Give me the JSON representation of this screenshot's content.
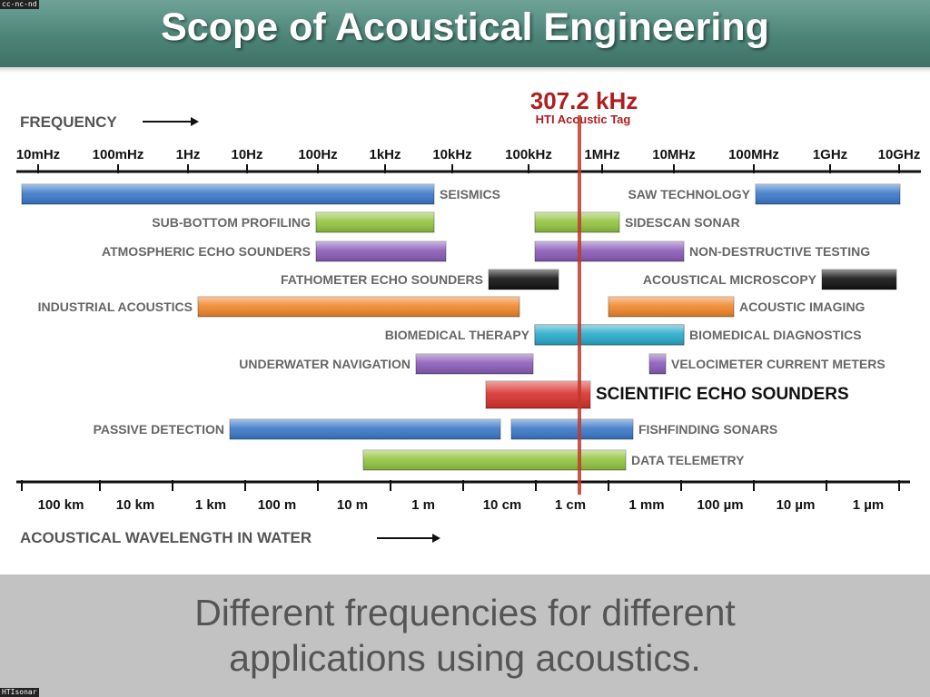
{
  "title": "Scope of Acoustical Engineering",
  "license_tag": "cc-nc-nd",
  "source_tag": "HTIsonar",
  "frequency_label": "FREQUENCY",
  "wavelength_label": "ACOUSTICAL WAVELENGTH IN WATER",
  "frequency_ticks": [
    "10mHz",
    "100mHz",
    "1Hz",
    "10Hz",
    "100Hz",
    "1kHz",
    "10kHz",
    "100kHz",
    "1MHz",
    "10MHz",
    "100MHz",
    "1GHz",
    "10GHz"
  ],
  "wavelength_ticks": [
    "100 km",
    "10 km",
    "1 km",
    "100 m",
    "10 m",
    "1 m",
    "10 cm",
    "1 cm",
    "1 mm",
    "100 µm",
    "10 µm",
    "1 µm"
  ],
  "marker": {
    "value": "307.2 kHz",
    "label": "HTI Acoustic Tag",
    "color": "#c0392b"
  },
  "colors": {
    "blue": "#3a78c9",
    "green": "#93c440",
    "purple": "#8a5bb8",
    "black": "#111111",
    "orange": "#f0862a",
    "teal": "#27aacb",
    "red": "#d8312c"
  },
  "applications": [
    {
      "label": "SEISMICS",
      "color": "blue",
      "from": "10mHz",
      "to": "10kHz",
      "label_side": "right"
    },
    {
      "label": "SUB-BOTTOM PROFILING",
      "color": "green",
      "from": "100Hz",
      "to": "10kHz",
      "label_side": "left"
    },
    {
      "label": "ATMOSPHERIC ECHO SOUNDERS",
      "color": "purple",
      "from": "100Hz",
      "to": "10kHz",
      "label_side": "left"
    },
    {
      "label": "FATHOMETER ECHO SOUNDERS",
      "color": "black",
      "from": "~30kHz",
      "to": "~300kHz",
      "label_side": "left"
    },
    {
      "label": "INDUSTRIAL ACOUSTICS",
      "color": "orange",
      "from": "~3Hz",
      "to": "~50kHz",
      "label_side": "left"
    },
    {
      "label": "BIOMEDICAL THERAPY",
      "color": "teal",
      "from": "100kHz",
      "to": "1MHz",
      "label_side": "left"
    },
    {
      "label": "UNDERWATER NAVIGATION",
      "color": "purple",
      "from": "~10kHz",
      "to": "100kHz",
      "label_side": "left"
    },
    {
      "label": "SCIENTIFIC ECHO SOUNDERS",
      "color": "red",
      "from": "~30kHz",
      "to": "~1MHz",
      "label_side": "right",
      "emphasis": true
    },
    {
      "label": "PASSIVE DETECTION",
      "color": "blue",
      "from": "~1Hz",
      "to": "~30kHz",
      "label_side": "left"
    },
    {
      "label": "FISHFINDING SONARS",
      "color": "blue",
      "from": "~50kHz",
      "to": "~3MHz",
      "label_side": "right"
    },
    {
      "label": "DATA TELEMETRY",
      "color": "green",
      "from": "~1kHz",
      "to": "~3MHz",
      "label_side": "right"
    },
    {
      "label": "SAW TECHNOLOGY",
      "color": "blue",
      "from": "100MHz",
      "to": "10GHz",
      "label_side": "left"
    },
    {
      "label": "SIDESCAN SONAR",
      "color": "green",
      "from": "100kHz",
      "to": "1MHz",
      "label_side": "right"
    },
    {
      "label": "NON-DESTRUCTIVE TESTING",
      "color": "purple",
      "from": "100kHz",
      "to": "10MHz",
      "label_side": "right"
    },
    {
      "label": "ACOUSTICAL MICROSCOPY",
      "color": "black",
      "from": "1GHz",
      "to": "10GHz",
      "label_side": "left"
    },
    {
      "label": "ACOUSTIC IMAGING",
      "color": "orange",
      "from": "1MHz",
      "to": "~50MHz",
      "label_side": "right"
    },
    {
      "label": "BIOMEDICAL DIAGNOSTICS",
      "color": "teal",
      "from": "1MHz",
      "to": "10MHz",
      "label_side": "right"
    },
    {
      "label": "VELOCIMETER CURRENT METERS",
      "color": "purple",
      "from": "~5MHz",
      "to": "~8MHz",
      "label_side": "right"
    }
  ],
  "footer": {
    "line1": "Different frequencies for different",
    "line2": "applications using acoustics."
  }
}
